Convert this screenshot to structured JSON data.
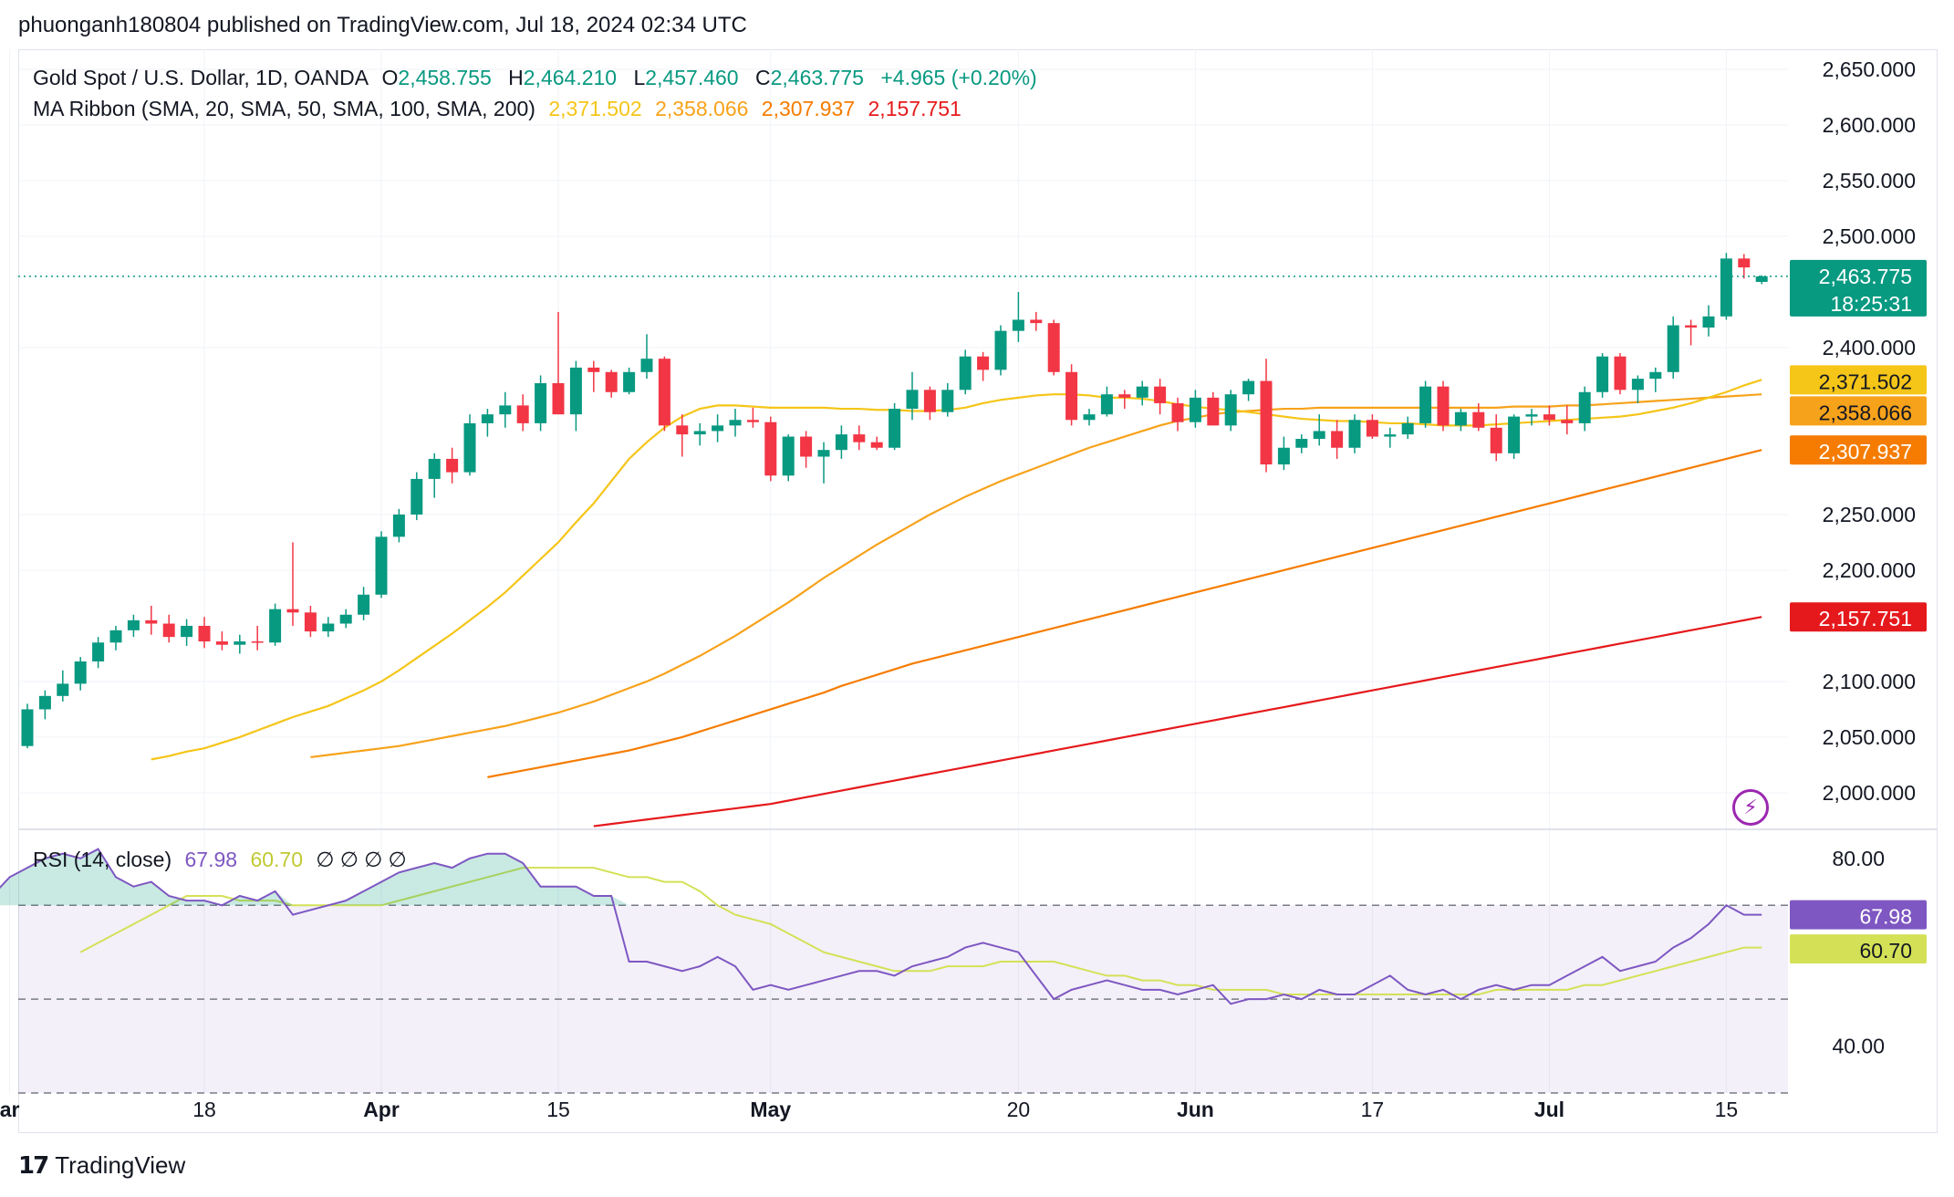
{
  "publisher_line": "phuonganh180804 published on TradingView.com, Jul 18, 2024 02:34 UTC",
  "symbol_line": "Gold Spot / U.S. Dollar, 1D, OANDA",
  "ohlc": {
    "o_key": "O",
    "o": "2,458.755",
    "h_key": "H",
    "h": "2,464.210",
    "l_key": "L",
    "l": "2,457.460",
    "c_key": "C",
    "c": "2,463.775",
    "change": "+4.965 (+0.20%)"
  },
  "ma_legend": {
    "label": "MA Ribbon (SMA, 20, SMA, 50, SMA, 100, SMA, 200)",
    "values": [
      "2,371.502",
      "2,358.066",
      "2,307.937",
      "2,157.751"
    ]
  },
  "rsi_legend": {
    "label": "RSI (14, close)",
    "rsi": "67.98",
    "ma": "60.70",
    "nulls": "∅ ∅ ∅ ∅"
  },
  "price_badge": {
    "price": "2,463.775",
    "countdown": "18:25:31"
  },
  "ma_badges": [
    "2,371.502",
    "2,358.066",
    "2,307.937",
    "2,157.751"
  ],
  "rsi_badges": [
    "67.98",
    "60.70"
  ],
  "footer_brand": "TradingView",
  "colors": {
    "up": "#089981",
    "down": "#f23645",
    "sma20": "#f5c518",
    "sma50": "#f7a21b",
    "sma100": "#f57c00",
    "sma200": "#e5191c",
    "rsi": "#7e57c2",
    "rsi_ma": "#d4e157"
  },
  "chart_data": [
    {
      "type": "candlestick",
      "y_axis_ticks": [
        "2,650.000",
        "2,600.000",
        "2,550.000",
        "2,500.000",
        "2,400.000",
        "2,250.000",
        "2,200.000",
        "2,100.000",
        "2,050.000",
        "2,000.000"
      ],
      "y_axis_values": [
        2650,
        2600,
        2550,
        2500,
        2400,
        2250,
        2200,
        2100,
        2050,
        2000
      ],
      "ylim": [
        1968,
        2668
      ],
      "x_axis_ticks": [
        {
          "label": "ar",
          "bar": -1
        },
        {
          "label": "18",
          "bar": 10
        },
        {
          "label": "Apr",
          "bar": 20
        },
        {
          "label": "15",
          "bar": 30
        },
        {
          "label": "May",
          "bar": 42
        },
        {
          "label": "20",
          "bar": 56
        },
        {
          "label": "Jun",
          "bar": 66
        },
        {
          "label": "17",
          "bar": 76
        },
        {
          "label": "Jul",
          "bar": 86
        },
        {
          "label": "15",
          "bar": 96
        }
      ],
      "candles": [
        [
          2042,
          2080,
          2040,
          2075
        ],
        [
          2075,
          2092,
          2066,
          2087
        ],
        [
          2087,
          2110,
          2082,
          2098
        ],
        [
          2098,
          2122,
          2092,
          2118
        ],
        [
          2118,
          2140,
          2112,
          2135
        ],
        [
          2135,
          2150,
          2128,
          2146
        ],
        [
          2146,
          2160,
          2140,
          2155
        ],
        [
          2155,
          2168,
          2142,
          2152
        ],
        [
          2152,
          2160,
          2135,
          2140
        ],
        [
          2140,
          2156,
          2132,
          2150
        ],
        [
          2150,
          2158,
          2130,
          2136
        ],
        [
          2136,
          2145,
          2128,
          2133
        ],
        [
          2133,
          2142,
          2125,
          2136
        ],
        [
          2136,
          2150,
          2128,
          2135
        ],
        [
          2135,
          2170,
          2132,
          2165
        ],
        [
          2165,
          2225,
          2150,
          2162
        ],
        [
          2162,
          2168,
          2140,
          2145
        ],
        [
          2145,
          2158,
          2140,
          2152
        ],
        [
          2152,
          2165,
          2148,
          2160
        ],
        [
          2160,
          2185,
          2155,
          2178
        ],
        [
          2178,
          2235,
          2175,
          2230
        ],
        [
          2230,
          2255,
          2225,
          2250
        ],
        [
          2250,
          2288,
          2245,
          2282
        ],
        [
          2282,
          2305,
          2265,
          2300
        ],
        [
          2300,
          2310,
          2278,
          2288
        ],
        [
          2288,
          2340,
          2285,
          2332
        ],
        [
          2332,
          2345,
          2320,
          2340
        ],
        [
          2340,
          2360,
          2328,
          2348
        ],
        [
          2348,
          2358,
          2325,
          2332
        ],
        [
          2332,
          2375,
          2325,
          2368
        ],
        [
          2368,
          2432,
          2340,
          2340
        ],
        [
          2340,
          2388,
          2325,
          2382
        ],
        [
          2382,
          2388,
          2360,
          2378
        ],
        [
          2378,
          2380,
          2355,
          2360
        ],
        [
          2360,
          2382,
          2358,
          2378
        ],
        [
          2378,
          2412,
          2372,
          2390
        ],
        [
          2390,
          2392,
          2325,
          2330
        ],
        [
          2330,
          2340,
          2302,
          2322
        ],
        [
          2322,
          2332,
          2312,
          2325
        ],
        [
          2325,
          2340,
          2315,
          2330
        ],
        [
          2330,
          2345,
          2320,
          2335
        ],
        [
          2335,
          2346,
          2328,
          2333
        ],
        [
          2333,
          2338,
          2280,
          2285
        ],
        [
          2285,
          2322,
          2280,
          2320
        ],
        [
          2320,
          2325,
          2292,
          2302
        ],
        [
          2302,
          2315,
          2278,
          2308
        ],
        [
          2308,
          2330,
          2300,
          2322
        ],
        [
          2322,
          2330,
          2308,
          2315
        ],
        [
          2315,
          2320,
          2308,
          2310
        ],
        [
          2310,
          2350,
          2308,
          2345
        ],
        [
          2345,
          2378,
          2335,
          2362
        ],
        [
          2362,
          2365,
          2335,
          2342
        ],
        [
          2342,
          2368,
          2338,
          2362
        ],
        [
          2362,
          2398,
          2358,
          2392
        ],
        [
          2392,
          2396,
          2370,
          2380
        ],
        [
          2380,
          2420,
          2375,
          2415
        ],
        [
          2415,
          2450,
          2405,
          2425
        ],
        [
          2425,
          2432,
          2415,
          2422
        ],
        [
          2422,
          2425,
          2375,
          2378
        ],
        [
          2378,
          2385,
          2330,
          2335
        ],
        [
          2335,
          2345,
          2330,
          2340
        ],
        [
          2340,
          2365,
          2338,
          2358
        ],
        [
          2358,
          2362,
          2345,
          2355
        ],
        [
          2355,
          2370,
          2348,
          2365
        ],
        [
          2365,
          2372,
          2340,
          2350
        ],
        [
          2350,
          2355,
          2325,
          2333
        ],
        [
          2333,
          2362,
          2328,
          2355
        ],
        [
          2355,
          2360,
          2330,
          2330
        ],
        [
          2330,
          2362,
          2325,
          2358
        ],
        [
          2358,
          2372,
          2352,
          2370
        ],
        [
          2370,
          2390,
          2288,
          2295
        ],
        [
          2295,
          2320,
          2290,
          2310
        ],
        [
          2310,
          2322,
          2305,
          2318
        ],
        [
          2318,
          2340,
          2312,
          2325
        ],
        [
          2325,
          2335,
          2300,
          2310
        ],
        [
          2310,
          2340,
          2305,
          2335
        ],
        [
          2335,
          2340,
          2318,
          2320
        ],
        [
          2320,
          2328,
          2310,
          2322
        ],
        [
          2322,
          2338,
          2318,
          2332
        ],
        [
          2332,
          2370,
          2328,
          2365
        ],
        [
          2365,
          2370,
          2325,
          2330
        ],
        [
          2330,
          2345,
          2325,
          2342
        ],
        [
          2342,
          2350,
          2325,
          2328
        ],
        [
          2328,
          2340,
          2298,
          2305
        ],
        [
          2305,
          2340,
          2300,
          2338
        ],
        [
          2338,
          2345,
          2330,
          2340
        ],
        [
          2340,
          2348,
          2330,
          2335
        ],
        [
          2335,
          2348,
          2322,
          2332
        ],
        [
          2332,
          2365,
          2325,
          2360
        ],
        [
          2360,
          2395,
          2355,
          2392
        ],
        [
          2392,
          2395,
          2358,
          2362
        ],
        [
          2362,
          2375,
          2350,
          2372
        ],
        [
          2372,
          2382,
          2360,
          2378
        ],
        [
          2378,
          2428,
          2372,
          2420
        ],
        [
          2420,
          2425,
          2402,
          2418
        ],
        [
          2418,
          2438,
          2410,
          2428
        ],
        [
          2428,
          2485,
          2425,
          2480
        ],
        [
          2480,
          2484,
          2462,
          2472
        ],
        [
          2459,
          2465,
          2457,
          2464
        ]
      ],
      "sma20": [
        2030,
        2033,
        2037,
        2040,
        2045,
        2050,
        2056,
        2062,
        2068,
        2073,
        2078,
        2085,
        2092,
        2100,
        2110,
        2121,
        2132,
        2143,
        2155,
        2167,
        2180,
        2195,
        2210,
        2225,
        2243,
        2260,
        2280,
        2300,
        2315,
        2328,
        2338,
        2345,
        2348,
        2348,
        2347,
        2346,
        2346,
        2346,
        2346,
        2345,
        2345,
        2344,
        2344,
        2343,
        2343,
        2344,
        2346,
        2350,
        2353,
        2355,
        2357,
        2358,
        2358,
        2357,
        2355,
        2355,
        2354,
        2352,
        2349,
        2347,
        2345,
        2344,
        2342,
        2340,
        2338,
        2336,
        2335,
        2334,
        2334,
        2333,
        2332,
        2332,
        2331,
        2330,
        2330,
        2330,
        2331,
        2332,
        2333,
        2334,
        2335,
        2336,
        2337,
        2338,
        2340,
        2343,
        2346,
        2350,
        2355,
        2360,
        2366,
        2371
      ],
      "sma50": [
        2032,
        2034,
        2036,
        2038,
        2040,
        2042,
        2045,
        2048,
        2051,
        2054,
        2057,
        2060,
        2064,
        2068,
        2072,
        2077,
        2082,
        2088,
        2094,
        2100,
        2107,
        2115,
        2123,
        2132,
        2141,
        2151,
        2161,
        2171,
        2182,
        2193,
        2203,
        2213,
        2223,
        2232,
        2241,
        2250,
        2258,
        2266,
        2273,
        2280,
        2286,
        2292,
        2298,
        2304,
        2310,
        2315,
        2320,
        2325,
        2330,
        2334,
        2337,
        2340,
        2342,
        2343,
        2344,
        2345,
        2345,
        2346,
        2346,
        2346,
        2346,
        2346,
        2346,
        2346,
        2346,
        2346,
        2346,
        2346,
        2347,
        2347,
        2347,
        2348,
        2348,
        2349,
        2350,
        2351,
        2352,
        2353,
        2354,
        2355,
        2356,
        2357,
        2358
      ],
      "sma100": [
        2014,
        2017,
        2020,
        2023,
        2026,
        2029,
        2032,
        2035,
        2038,
        2042,
        2046,
        2050,
        2055,
        2060,
        2065,
        2070,
        2075,
        2080,
        2085,
        2090,
        2096,
        2101,
        2106,
        2111,
        2116,
        2120,
        2124,
        2128,
        2132,
        2136,
        2140,
        2144,
        2148,
        2152,
        2156,
        2160,
        2164,
        2168,
        2172,
        2176,
        2180,
        2184,
        2188,
        2192,
        2196,
        2200,
        2204,
        2208,
        2212,
        2216,
        2220,
        2224,
        2228,
        2232,
        2236,
        2240,
        2244,
        2248,
        2252,
        2256,
        2260,
        2264,
        2268,
        2272,
        2276,
        2280,
        2284,
        2288,
        2292,
        2296,
        2300,
        2304,
        2308
      ],
      "sma200": [
        1970,
        1972,
        1974,
        1976,
        1978,
        1980,
        1982,
        1984,
        1986,
        1988,
        1990,
        1993,
        1996,
        1999,
        2002,
        2005,
        2008,
        2011,
        2014,
        2017,
        2020,
        2023,
        2026,
        2029,
        2032,
        2035,
        2038,
        2041,
        2044,
        2047,
        2050,
        2053,
        2056,
        2059,
        2062,
        2065,
        2068,
        2071,
        2074,
        2077,
        2080,
        2083,
        2086,
        2089,
        2092,
        2095,
        2098,
        2101,
        2104,
        2107,
        2110,
        2113,
        2116,
        2119,
        2122,
        2125,
        2128,
        2131,
        2134,
        2137,
        2140,
        2143,
        2146,
        2149,
        2152,
        2155,
        2158
      ]
    },
    {
      "type": "line",
      "y_axis_ticks": [
        "80.00",
        "40.00"
      ],
      "y_axis_values": [
        80,
        40
      ],
      "ylim": [
        30,
        86
      ],
      "bands": [
        70,
        50,
        30
      ],
      "rsi": [
        72,
        76,
        78,
        80,
        81,
        80,
        82,
        76,
        74,
        75,
        72,
        71,
        71,
        70,
        72,
        71,
        73,
        68,
        69,
        70,
        71,
        73,
        75,
        77,
        78,
        79,
        78,
        80,
        81,
        81,
        79,
        74,
        74,
        74,
        72,
        72,
        58,
        58,
        57,
        56,
        57,
        59,
        57,
        52,
        53,
        52,
        53,
        54,
        55,
        56,
        56,
        55,
        57,
        58,
        59,
        61,
        62,
        61,
        60,
        55,
        50,
        52,
        53,
        54,
        53,
        52,
        52,
        51,
        52,
        53,
        49,
        50,
        50,
        51,
        50,
        52,
        51,
        51,
        53,
        55,
        52,
        51,
        52,
        50,
        52,
        53,
        52,
        53,
        53,
        55,
        57,
        59,
        56,
        57,
        58,
        61,
        63,
        66,
        70,
        68,
        68
      ],
      "rsi_ma": [
        60,
        62,
        64,
        66,
        68,
        70,
        72,
        72,
        72,
        71,
        71,
        71,
        70,
        70,
        70,
        70,
        70,
        70,
        71,
        72,
        73,
        74,
        75,
        76,
        77,
        78,
        78,
        78,
        78,
        78,
        77,
        76,
        76,
        75,
        75,
        73,
        70,
        68,
        67,
        66,
        64,
        62,
        60,
        59,
        58,
        57,
        56,
        56,
        56,
        57,
        57,
        57,
        58,
        58,
        58,
        58,
        57,
        56,
        55,
        55,
        54,
        54,
        53,
        53,
        52,
        52,
        52,
        52,
        51,
        51,
        51,
        51,
        51,
        51,
        51,
        51,
        51,
        51,
        51,
        51,
        52,
        52,
        52,
        52,
        52,
        53,
        53,
        54,
        55,
        56,
        57,
        58,
        59,
        60,
        61,
        61
      ]
    }
  ]
}
